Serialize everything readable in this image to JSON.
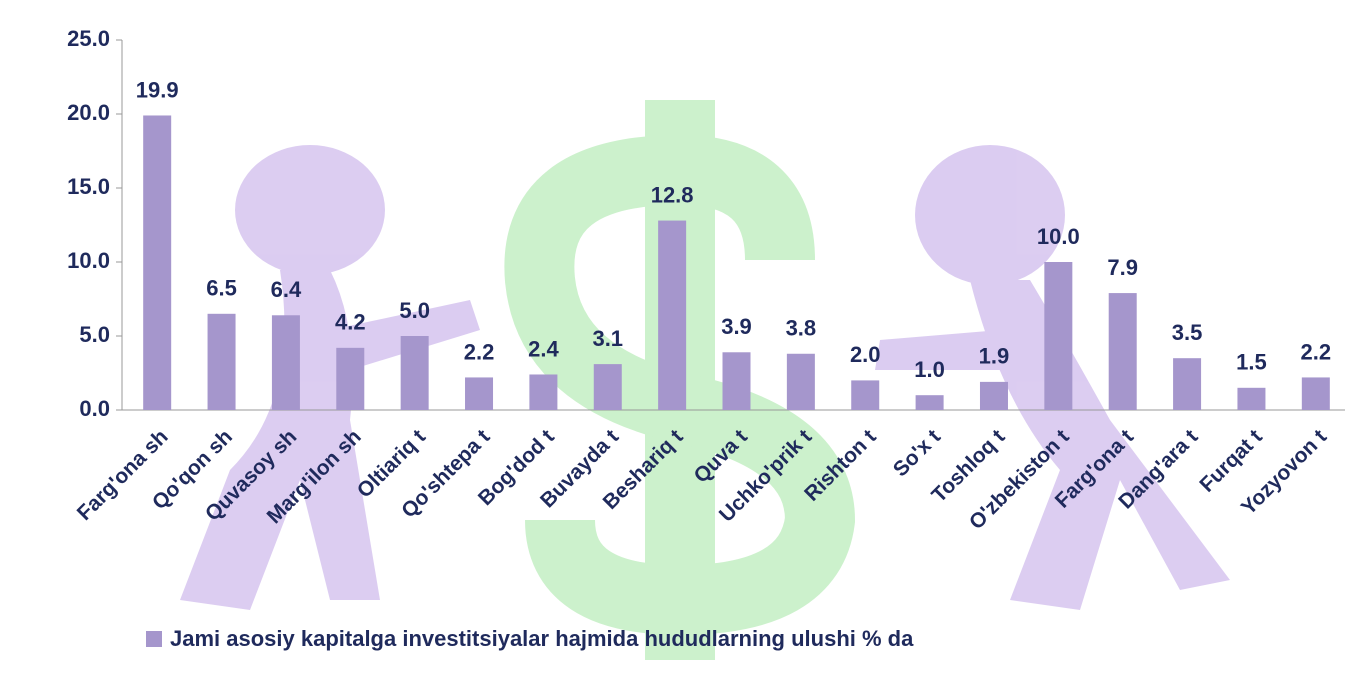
{
  "chart_data": {
    "type": "bar",
    "categories": [
      "Farg'ona sh",
      "Qo'qon sh",
      "Quvasoy sh",
      "Marg'ilon sh",
      "Oltiariq t",
      "Qo'shtepa t",
      "Bog'dod t",
      "Buvayda t",
      "Beshariq t",
      "Quva t",
      "Uchko'prik t",
      "Rishton t",
      "So'x t",
      "Toshloq t",
      "O'zbekiston t",
      "Farg'ona t",
      "Dang'ara t",
      "Furqat t",
      "Yozyovon t"
    ],
    "series": [
      {
        "name": "Jami asosiy kapitalga investitsiyalar hajmida hududlarning ulushi % da",
        "color": "#a596cc",
        "values": [
          19.9,
          6.5,
          6.4,
          4.2,
          5.0,
          2.2,
          2.4,
          3.1,
          12.8,
          3.9,
          3.8,
          2.0,
          1.0,
          1.9,
          10.0,
          7.9,
          3.5,
          1.5,
          2.2
        ],
        "value_labels": [
          "19.9",
          "6.5",
          "6.4",
          "4.2",
          "5.0",
          "2.2",
          "2.4",
          "3.1",
          "12.8",
          "3.9",
          "3.8",
          "2.0",
          "1.0",
          "1.9",
          "10.0",
          "7.9",
          "3.5",
          "1.5",
          "2.2"
        ]
      }
    ],
    "ylim": [
      0,
      25
    ],
    "yticks": [
      {
        "value": 0,
        "label": "0.0"
      },
      {
        "value": 5,
        "label": "5.0"
      },
      {
        "value": 10,
        "label": "10.0"
      },
      {
        "value": 15,
        "label": "15.0"
      },
      {
        "value": 20,
        "label": "20.0"
      },
      {
        "value": 25,
        "label": "25.0"
      }
    ],
    "legend": "bottom"
  }
}
